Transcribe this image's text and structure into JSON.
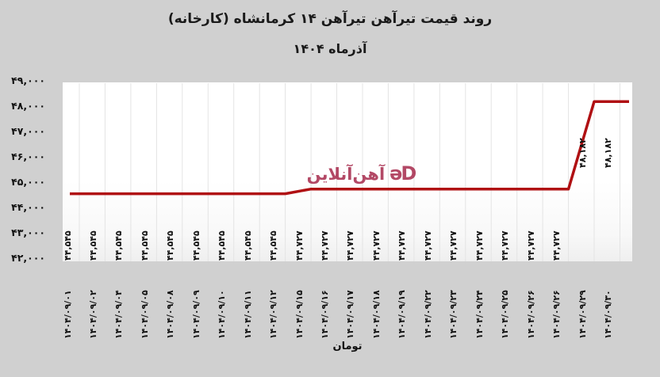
{
  "header": {
    "title": "روند قیمت تیرآهن تیرآهن ۱۴ کرمانشاه (کارخانه)",
    "subtitle": "آذرماه ۱۴۰۴"
  },
  "watermark": {
    "brand": "آهن‌آنلاین",
    "mark_glyph": "ǝD",
    "mark_icon": "ahan-online-logo"
  },
  "colors": {
    "background": "#d0d0d0",
    "plot_background": "#ffffff",
    "gridline": "#e4e4e4",
    "line": "#b01013",
    "logo": "#a11c40",
    "text": "#1a1a1a"
  },
  "chart_data": {
    "type": "line",
    "title": "روند قیمت تیرآهن تیرآهن ۱۴ کرمانشاه (کارخانه)",
    "subtitle": "آذرماه ۱۴۰۴",
    "xlabel": "تومان",
    "ylabel": "",
    "ylim": [
      42000,
      49000
    ],
    "y_tick_step": 1000,
    "grid": "vertical-only",
    "legend_position": "none",
    "y_ticks": [
      {
        "value": 49000,
        "label": "۴۹,۰۰۰"
      },
      {
        "value": 48000,
        "label": "۴۸,۰۰۰"
      },
      {
        "value": 47000,
        "label": "۴۷,۰۰۰"
      },
      {
        "value": 46000,
        "label": "۴۶,۰۰۰"
      },
      {
        "value": 45000,
        "label": "۴۵,۰۰۰"
      },
      {
        "value": 44000,
        "label": "۴۴,۰۰۰"
      },
      {
        "value": 43000,
        "label": "۴۳,۰۰۰"
      },
      {
        "value": 42000,
        "label": "۴۲,۰۰۰"
      }
    ],
    "points": [
      {
        "date": "۱۴۰۴/۰۹/۰۱",
        "value": 44545,
        "label": "۴۴,۵۴۵"
      },
      {
        "date": "۱۴۰۴/۰۹/۰۲",
        "value": 44545,
        "label": "۴۴,۵۴۵"
      },
      {
        "date": "۱۴۰۴/۰۹/۰۴",
        "value": 44545,
        "label": "۴۴,۵۴۵"
      },
      {
        "date": "۱۴۰۴/۰۹/۰۵",
        "value": 44545,
        "label": "۴۴,۵۴۵"
      },
      {
        "date": "۱۴۰۴/۰۹/۰۸",
        "value": 44545,
        "label": "۴۴,۵۴۵"
      },
      {
        "date": "۱۴۰۴/۰۹/۰۹",
        "value": 44545,
        "label": "۴۴,۵۴۵"
      },
      {
        "date": "۱۴۰۴/۰۹/۱۰",
        "value": 44545,
        "label": "۴۴,۵۴۵"
      },
      {
        "date": "۱۴۰۴/۰۹/۱۱",
        "value": 44545,
        "label": "۴۴,۵۴۵"
      },
      {
        "date": "۱۴۰۴/۰۹/۱۲",
        "value": 44545,
        "label": "۴۴,۵۴۵"
      },
      {
        "date": "۱۴۰۴/۰۹/۱۵",
        "value": 44727,
        "label": "۴۴,۷۲۷"
      },
      {
        "date": "۱۴۰۴/۰۹/۱۶",
        "value": 44727,
        "label": "۴۴,۷۲۷"
      },
      {
        "date": "۱۴۰۴/۰۹/۱۷",
        "value": 44727,
        "label": "۴۴,۷۲۷"
      },
      {
        "date": "۱۴۰۴/۰۹/۱۸",
        "value": 44727,
        "label": "۴۴,۷۲۷"
      },
      {
        "date": "۱۴۰۴/۰۹/۱۹",
        "value": 44727,
        "label": "۴۴,۷۲۷"
      },
      {
        "date": "۱۴۰۴/۰۹/۲۲",
        "value": 44727,
        "label": "۴۴,۷۲۷"
      },
      {
        "date": "۱۴۰۴/۰۹/۲۳",
        "value": 44727,
        "label": "۴۴,۷۲۷"
      },
      {
        "date": "۱۴۰۴/۰۹/۲۴",
        "value": 44727,
        "label": "۴۴,۷۲۷"
      },
      {
        "date": "۱۴۰۴/۰۹/۲۵",
        "value": 44727,
        "label": "۴۴,۷۲۷"
      },
      {
        "date": "۱۴۰۴/۰۹/۲۶",
        "value": 44727,
        "label": "۴۴,۷۲۷"
      },
      {
        "date": "۱۴۰۴/۰۹/۲۶",
        "value": 44727,
        "label": "۴۴,۷۲۷"
      },
      {
        "date": "۱۴۰۴/۰۹/۲۹",
        "value": 48182,
        "label": "۴۸,۱۸۲"
      },
      {
        "date": "۱۴۰۴/۰۹/۳۰",
        "value": 48182,
        "label": "۴۸,۱۸۲"
      }
    ]
  }
}
